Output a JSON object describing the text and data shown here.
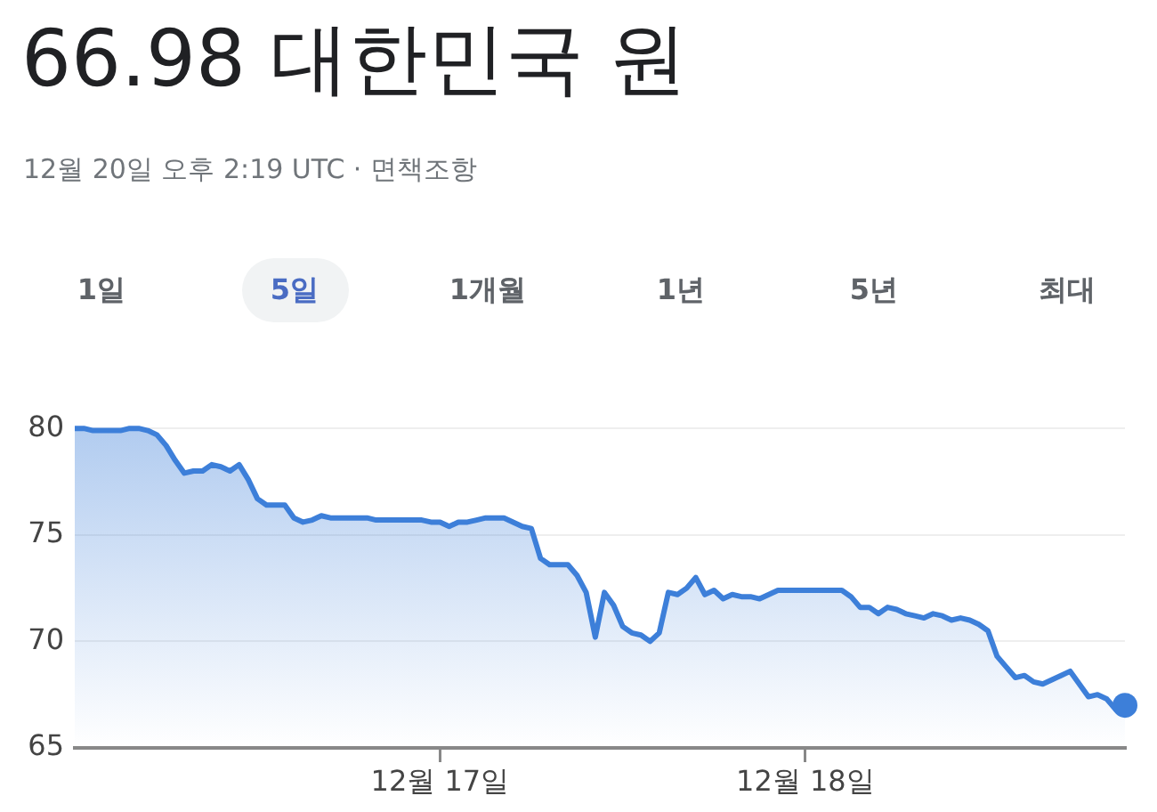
{
  "chart_data": {
    "type": "area",
    "title": "66.98 대한민국 원",
    "subtitle": "12월 20일 오후 2:19 UTC · 면책조항",
    "annotations": [
      "1일",
      "5일",
      "1개월",
      "1년",
      "5년",
      "최대"
    ],
    "categories": [
      null,
      null,
      null,
      null,
      null,
      null,
      null,
      null,
      null,
      null,
      null,
      null,
      null,
      null,
      null,
      null,
      null,
      null,
      null,
      null,
      null,
      null,
      null,
      null,
      null,
      null,
      null,
      null,
      null,
      null,
      null,
      null,
      null,
      null,
      null,
      null,
      null,
      null,
      null,
      null,
      "12월 17일",
      null,
      null,
      null,
      null,
      null,
      null,
      null,
      null,
      null,
      null,
      null,
      null,
      null,
      null,
      null,
      null,
      null,
      null,
      null,
      null,
      null,
      null,
      null,
      null,
      null,
      null,
      null,
      null,
      null,
      null,
      null,
      null,
      null,
      null,
      null,
      null,
      null,
      null,
      null,
      "12월 18일",
      null,
      null,
      null,
      null,
      null,
      null,
      null,
      null,
      null,
      null,
      null,
      null,
      null,
      null,
      null,
      null,
      null,
      null,
      null,
      null,
      null,
      null,
      null,
      null,
      null,
      null,
      null,
      null,
      null,
      null,
      null,
      null,
      null,
      null,
      null
    ],
    "series": [
      {
        "color": "#3d7fd9",
        "values": [
          80.0,
          80.0,
          79.9,
          79.9,
          79.9,
          79.9,
          80.0,
          80.0,
          79.9,
          79.7,
          79.2,
          78.5,
          77.9,
          78.0,
          78.0,
          78.3,
          78.2,
          78.0,
          78.3,
          77.6,
          76.7,
          76.4,
          76.4,
          76.4,
          75.8,
          75.6,
          75.7,
          75.9,
          75.8,
          75.8,
          75.8,
          75.8,
          75.8,
          75.7,
          75.7,
          75.7,
          75.7,
          75.7,
          75.7,
          75.6,
          75.6,
          75.4,
          75.6,
          75.6,
          75.7,
          75.8,
          75.8,
          75.8,
          75.6,
          75.4,
          75.3,
          73.9,
          73.6,
          73.6,
          73.6,
          73.1,
          72.3,
          70.2,
          72.3,
          71.7,
          70.7,
          70.4,
          70.3,
          70.0,
          70.4,
          72.3,
          72.2,
          72.5,
          73.0,
          72.2,
          72.4,
          72.0,
          72.2,
          72.1,
          72.1,
          72.0,
          72.2,
          72.4,
          72.4,
          72.4,
          72.4,
          72.4,
          72.4,
          72.4,
          72.4,
          72.1,
          71.6,
          71.6,
          71.3,
          71.6,
          71.5,
          71.3,
          71.2,
          71.1,
          71.3,
          71.2,
          71.0,
          71.1,
          71.0,
          70.8,
          70.5,
          69.3,
          68.8,
          68.3,
          68.4,
          68.1,
          68.0,
          68.2,
          68.4,
          68.6,
          68.0,
          67.4,
          67.5,
          67.3,
          66.8,
          67.0
        ]
      }
    ],
    "ylim": [
      65,
      80
    ],
    "yticks": [
      65,
      70,
      75,
      80
    ],
    "grid": "y",
    "legend": false
  }
}
